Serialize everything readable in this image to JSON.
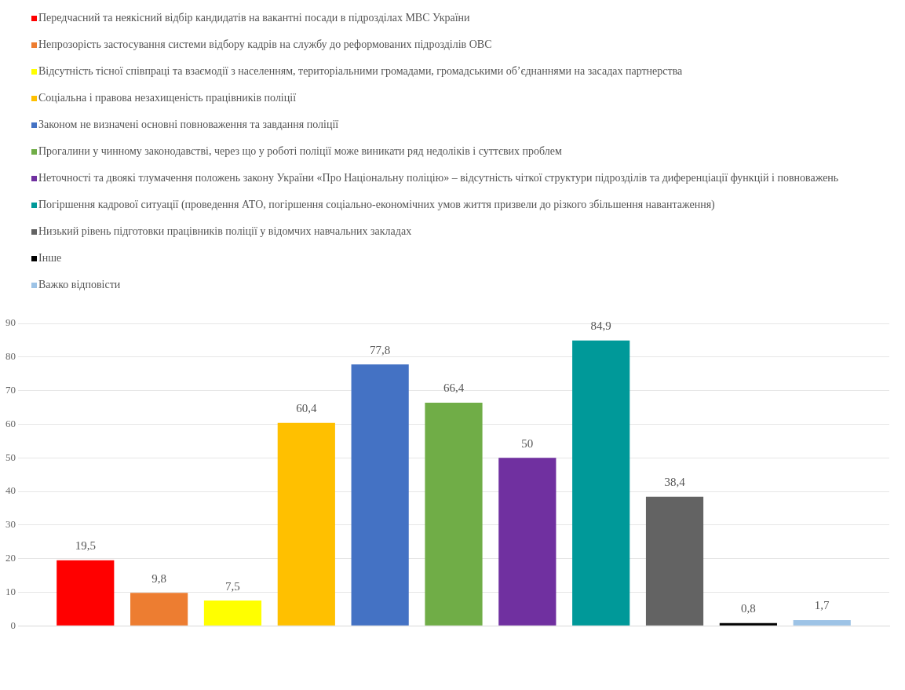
{
  "chart_data": {
    "type": "bar",
    "categories": [
      null
    ],
    "ylim": [
      0,
      90
    ],
    "yticks": [
      0,
      10,
      20,
      30,
      40,
      50,
      60,
      70,
      80,
      90
    ],
    "grid": "y",
    "legend": "top left",
    "tick_labels": "y",
    "series": [
      {
        "name": "Передчасний та неякісний відбір кандидатів на вакантні посади в підрозділах МВС України",
        "color": "#ff0000",
        "values": [
          19.5
        ],
        "value_labels": [
          "19,5"
        ]
      },
      {
        "name": "Непрозорість застосування системи відбору кадрів на службу до реформованих підрозділів ОВС",
        "color": "#ed7d31",
        "values": [
          9.8
        ],
        "value_labels": [
          "9,8"
        ]
      },
      {
        "name": "Відсутність   тісної   співпраці   та   взаємодії  з населенням, територіальними громадами, громадськими об’єднаннями на засадах партнерства",
        "color": "#ffff00",
        "values": [
          7.5
        ],
        "value_labels": [
          "7,5"
        ]
      },
      {
        "name": "Соціальна і правова незахищеність працівників поліції",
        "color": "#ffc000",
        "values": [
          60.4
        ],
        "value_labels": [
          "60,4"
        ]
      },
      {
        "name": "Законом не визначені основні повноваження та завдання поліції",
        "color": "#4472c4",
        "values": [
          77.8
        ],
        "value_labels": [
          "77,8"
        ]
      },
      {
        "name": "Прогалини у чинному законодавстві, через що у роботі поліції може виникати ряд недоліків і суттєвих проблем",
        "color": "#70ad47",
        "values": [
          66.4
        ],
        "value_labels": [
          "66,4"
        ]
      },
      {
        "name": "Неточності та двоякі тлумачення положень закону України «Про Національну поліцію» – відсутність   чіткої   структури підрозділів та диференціації функцій і повноважень",
        "color": "#7030a0",
        "values": [
          50
        ],
        "value_labels": [
          "50"
        ]
      },
      {
        "name": "Погіршення кадрової ситуації (проведення АТО, погіршення соціально-економічних умов життя призвели до різкого збільшення навантаження)",
        "color": "#009999",
        "values": [
          84.9
        ],
        "value_labels": [
          "84,9"
        ]
      },
      {
        "name": "Низький рівень підготовки працівників поліції у відомчих навчальних закладах",
        "color": "#636363",
        "values": [
          38.4
        ],
        "value_labels": [
          "38,4"
        ]
      },
      {
        "name": "Інше",
        "color": "#000000",
        "values": [
          0.8
        ],
        "value_labels": [
          "0,8"
        ]
      },
      {
        "name": "Важко відповісти",
        "color": "#9dc3e6",
        "values": [
          1.7
        ],
        "value_labels": [
          "1,7"
        ]
      }
    ]
  }
}
